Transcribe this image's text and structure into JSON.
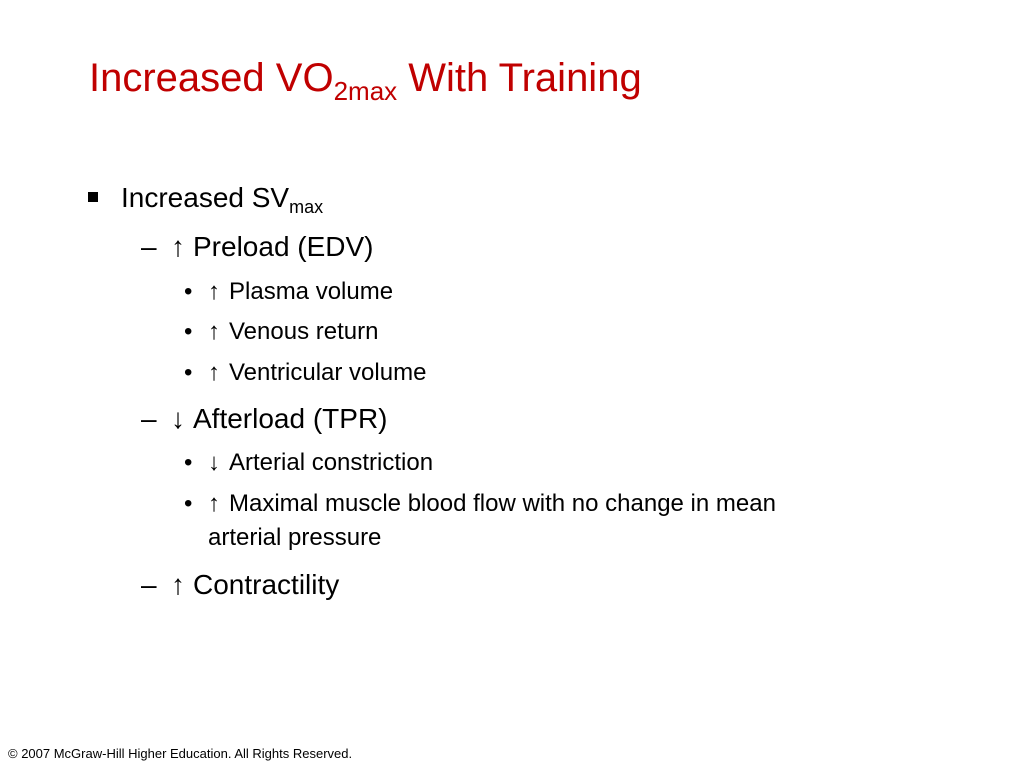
{
  "slide": {
    "title": {
      "main": "Increased VO",
      "subscript": "2max",
      "tail": " With Training"
    },
    "bullets": [
      {
        "id": "increased-sv",
        "marker": "▪",
        "text": "Increased SV",
        "subscript": "max",
        "children": [
          {
            "id": "preload",
            "dash": "–",
            "arrow": "↑",
            "text": "Preload (EDV)",
            "children": [
              {
                "id": "plasma-volume",
                "dot": "•",
                "arrow": "↑",
                "text": "Plasma volume"
              },
              {
                "id": "venous-return",
                "dot": "•",
                "arrow": "↑",
                "text": "Venous return"
              },
              {
                "id": "ventricular-volume",
                "dot": "•",
                "arrow": "↑",
                "text": "Ventricular volume"
              }
            ]
          },
          {
            "id": "afterload",
            "dash": "–",
            "arrow": "↓",
            "text": "Afterload (TPR)",
            "children": [
              {
                "id": "arterial-constriction",
                "dot": "•",
                "arrow": "↓",
                "text": "Arterial constriction"
              },
              {
                "id": "maximal-muscle-blood-flow",
                "dot": "•",
                "arrow": "↑",
                "text": "Maximal muscle blood flow with no change in mean",
                "continuation": "arterial pressure"
              }
            ]
          },
          {
            "id": "contractility",
            "dash": "–",
            "arrow": "↑",
            "text": "Contractility",
            "children": []
          }
        ]
      }
    ],
    "footer": "© 2007 McGraw-Hill Higher Education. All Rights Reserved."
  },
  "colors": {
    "title": "#c00000",
    "body_text": "#000000",
    "background": "#ffffff"
  }
}
